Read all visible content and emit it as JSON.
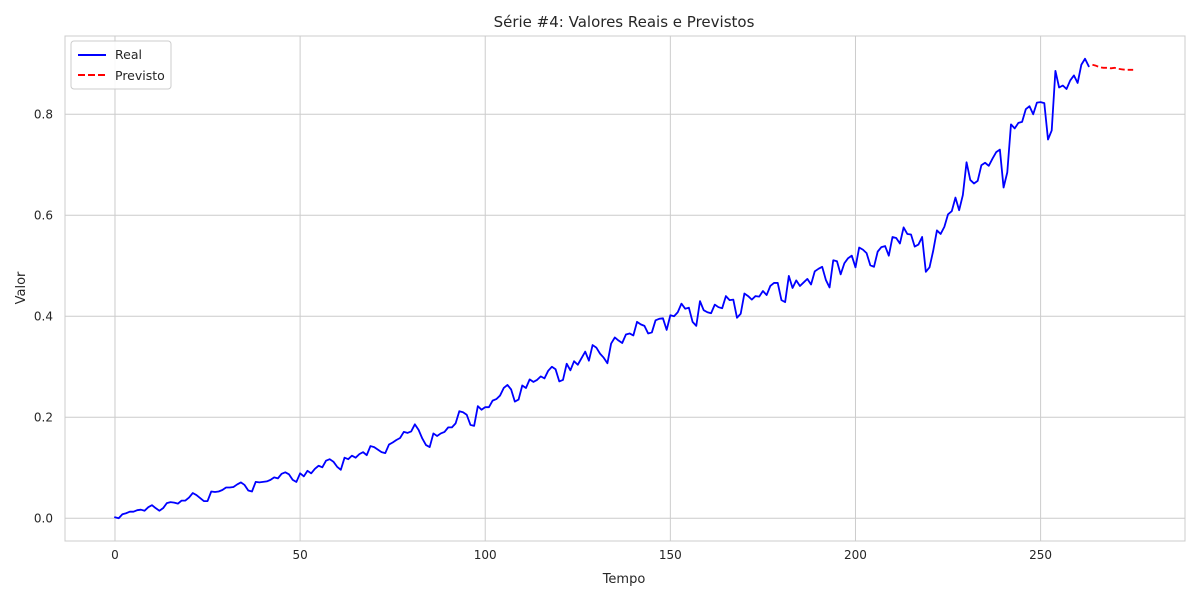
{
  "chart_data": {
    "type": "line",
    "title": "Série #4: Valores Reais e Previstos",
    "xlabel": "Tempo",
    "ylabel": "Valor",
    "xlim": [
      -13.5,
      289
    ],
    "ylim": [
      -0.045,
      0.955
    ],
    "xticks": [
      0,
      50,
      100,
      150,
      200,
      250
    ],
    "yticks": [
      0.0,
      0.2,
      0.4,
      0.6,
      0.8
    ],
    "ytick_labels": [
      "0.0",
      "0.2",
      "0.4",
      "0.6",
      "0.8"
    ],
    "grid": true,
    "legend_position": "top-left",
    "series": [
      {
        "name": "Real",
        "color": "#0000ff",
        "dash": "solid",
        "points": [
          [
            0,
            0.002
          ],
          [
            1,
            0.0
          ],
          [
            2,
            0.008
          ],
          [
            3,
            0.01
          ],
          [
            4,
            0.013
          ],
          [
            5,
            0.013
          ],
          [
            6,
            0.016
          ],
          [
            7,
            0.017
          ],
          [
            8,
            0.015
          ],
          [
            9,
            0.022
          ],
          [
            10,
            0.026
          ],
          [
            11,
            0.02
          ],
          [
            12,
            0.015
          ],
          [
            13,
            0.02
          ],
          [
            14,
            0.03
          ],
          [
            15,
            0.032
          ],
          [
            16,
            0.031
          ],
          [
            17,
            0.029
          ],
          [
            18,
            0.035
          ],
          [
            19,
            0.035
          ],
          [
            20,
            0.041
          ],
          [
            21,
            0.05
          ],
          [
            22,
            0.046
          ],
          [
            23,
            0.04
          ],
          [
            24,
            0.034
          ],
          [
            25,
            0.034
          ],
          [
            26,
            0.053
          ],
          [
            27,
            0.052
          ],
          [
            28,
            0.053
          ],
          [
            29,
            0.056
          ],
          [
            30,
            0.061
          ],
          [
            31,
            0.061
          ],
          [
            32,
            0.062
          ],
          [
            33,
            0.067
          ],
          [
            34,
            0.071
          ],
          [
            35,
            0.066
          ],
          [
            36,
            0.055
          ],
          [
            37,
            0.053
          ],
          [
            38,
            0.072
          ],
          [
            39,
            0.071
          ],
          [
            40,
            0.072
          ],
          [
            41,
            0.073
          ],
          [
            42,
            0.076
          ],
          [
            43,
            0.081
          ],
          [
            44,
            0.079
          ],
          [
            45,
            0.088
          ],
          [
            46,
            0.091
          ],
          [
            47,
            0.087
          ],
          [
            48,
            0.076
          ],
          [
            49,
            0.072
          ],
          [
            50,
            0.089
          ],
          [
            51,
            0.083
          ],
          [
            52,
            0.094
          ],
          [
            53,
            0.089
          ],
          [
            54,
            0.098
          ],
          [
            55,
            0.104
          ],
          [
            56,
            0.101
          ],
          [
            57,
            0.114
          ],
          [
            58,
            0.117
          ],
          [
            59,
            0.112
          ],
          [
            60,
            0.102
          ],
          [
            61,
            0.096
          ],
          [
            62,
            0.12
          ],
          [
            63,
            0.117
          ],
          [
            64,
            0.124
          ],
          [
            65,
            0.12
          ],
          [
            66,
            0.127
          ],
          [
            67,
            0.131
          ],
          [
            68,
            0.125
          ],
          [
            69,
            0.143
          ],
          [
            70,
            0.141
          ],
          [
            71,
            0.136
          ],
          [
            72,
            0.131
          ],
          [
            73,
            0.129
          ],
          [
            74,
            0.146
          ],
          [
            75,
            0.15
          ],
          [
            76,
            0.155
          ],
          [
            77,
            0.159
          ],
          [
            78,
            0.171
          ],
          [
            79,
            0.169
          ],
          [
            80,
            0.172
          ],
          [
            81,
            0.186
          ],
          [
            82,
            0.175
          ],
          [
            83,
            0.158
          ],
          [
            84,
            0.145
          ],
          [
            85,
            0.141
          ],
          [
            86,
            0.168
          ],
          [
            87,
            0.163
          ],
          [
            88,
            0.168
          ],
          [
            89,
            0.171
          ],
          [
            90,
            0.18
          ],
          [
            91,
            0.18
          ],
          [
            92,
            0.188
          ],
          [
            93,
            0.212
          ],
          [
            94,
            0.21
          ],
          [
            95,
            0.205
          ],
          [
            96,
            0.185
          ],
          [
            97,
            0.183
          ],
          [
            98,
            0.222
          ],
          [
            99,
            0.215
          ],
          [
            100,
            0.22
          ],
          [
            101,
            0.22
          ],
          [
            102,
            0.233
          ],
          [
            103,
            0.236
          ],
          [
            104,
            0.243
          ],
          [
            105,
            0.258
          ],
          [
            106,
            0.264
          ],
          [
            107,
            0.255
          ],
          [
            108,
            0.231
          ],
          [
            109,
            0.235
          ],
          [
            110,
            0.263
          ],
          [
            111,
            0.258
          ],
          [
            112,
            0.275
          ],
          [
            113,
            0.27
          ],
          [
            114,
            0.274
          ],
          [
            115,
            0.281
          ],
          [
            116,
            0.277
          ],
          [
            117,
            0.292
          ],
          [
            118,
            0.3
          ],
          [
            119,
            0.295
          ],
          [
            120,
            0.271
          ],
          [
            121,
            0.274
          ],
          [
            122,
            0.306
          ],
          [
            123,
            0.293
          ],
          [
            124,
            0.311
          ],
          [
            125,
            0.304
          ],
          [
            126,
            0.317
          ],
          [
            127,
            0.33
          ],
          [
            128,
            0.312
          ],
          [
            129,
            0.343
          ],
          [
            130,
            0.338
          ],
          [
            131,
            0.326
          ],
          [
            132,
            0.318
          ],
          [
            133,
            0.307
          ],
          [
            134,
            0.346
          ],
          [
            135,
            0.358
          ],
          [
            136,
            0.352
          ],
          [
            137,
            0.347
          ],
          [
            138,
            0.364
          ],
          [
            139,
            0.366
          ],
          [
            140,
            0.362
          ],
          [
            141,
            0.389
          ],
          [
            142,
            0.384
          ],
          [
            143,
            0.381
          ],
          [
            144,
            0.366
          ],
          [
            145,
            0.368
          ],
          [
            146,
            0.392
          ],
          [
            147,
            0.395
          ],
          [
            148,
            0.396
          ],
          [
            149,
            0.373
          ],
          [
            150,
            0.402
          ],
          [
            151,
            0.4
          ],
          [
            152,
            0.408
          ],
          [
            153,
            0.425
          ],
          [
            154,
            0.415
          ],
          [
            155,
            0.417
          ],
          [
            156,
            0.389
          ],
          [
            157,
            0.381
          ],
          [
            158,
            0.43
          ],
          [
            159,
            0.412
          ],
          [
            160,
            0.408
          ],
          [
            161,
            0.406
          ],
          [
            162,
            0.423
          ],
          [
            163,
            0.418
          ],
          [
            164,
            0.416
          ],
          [
            165,
            0.44
          ],
          [
            166,
            0.432
          ],
          [
            167,
            0.433
          ],
          [
            168,
            0.397
          ],
          [
            169,
            0.405
          ],
          [
            170,
            0.445
          ],
          [
            171,
            0.44
          ],
          [
            172,
            0.433
          ],
          [
            173,
            0.44
          ],
          [
            174,
            0.439
          ],
          [
            175,
            0.45
          ],
          [
            176,
            0.442
          ],
          [
            177,
            0.46
          ],
          [
            178,
            0.466
          ],
          [
            179,
            0.466
          ],
          [
            180,
            0.432
          ],
          [
            181,
            0.428
          ],
          [
            182,
            0.48
          ],
          [
            183,
            0.456
          ],
          [
            184,
            0.471
          ],
          [
            185,
            0.46
          ],
          [
            186,
            0.467
          ],
          [
            187,
            0.474
          ],
          [
            188,
            0.463
          ],
          [
            189,
            0.489
          ],
          [
            190,
            0.494
          ],
          [
            191,
            0.498
          ],
          [
            192,
            0.472
          ],
          [
            193,
            0.457
          ],
          [
            194,
            0.511
          ],
          [
            195,
            0.509
          ],
          [
            196,
            0.483
          ],
          [
            197,
            0.505
          ],
          [
            198,
            0.515
          ],
          [
            199,
            0.52
          ],
          [
            200,
            0.497
          ],
          [
            201,
            0.536
          ],
          [
            202,
            0.532
          ],
          [
            203,
            0.525
          ],
          [
            204,
            0.501
          ],
          [
            205,
            0.498
          ],
          [
            206,
            0.528
          ],
          [
            207,
            0.537
          ],
          [
            208,
            0.539
          ],
          [
            209,
            0.52
          ],
          [
            210,
            0.557
          ],
          [
            211,
            0.555
          ],
          [
            212,
            0.544
          ],
          [
            213,
            0.576
          ],
          [
            214,
            0.563
          ],
          [
            215,
            0.562
          ],
          [
            216,
            0.538
          ],
          [
            217,
            0.542
          ],
          [
            218,
            0.557
          ],
          [
            219,
            0.488
          ],
          [
            220,
            0.497
          ],
          [
            221,
            0.53
          ],
          [
            222,
            0.57
          ],
          [
            223,
            0.563
          ],
          [
            224,
            0.577
          ],
          [
            225,
            0.602
          ],
          [
            226,
            0.608
          ],
          [
            227,
            0.635
          ],
          [
            228,
            0.61
          ],
          [
            229,
            0.64
          ],
          [
            230,
            0.705
          ],
          [
            231,
            0.67
          ],
          [
            232,
            0.663
          ],
          [
            233,
            0.668
          ],
          [
            234,
            0.699
          ],
          [
            235,
            0.704
          ],
          [
            236,
            0.698
          ],
          [
            237,
            0.712
          ],
          [
            238,
            0.725
          ],
          [
            239,
            0.73
          ],
          [
            240,
            0.655
          ],
          [
            241,
            0.685
          ],
          [
            242,
            0.78
          ],
          [
            243,
            0.772
          ],
          [
            244,
            0.783
          ],
          [
            245,
            0.785
          ],
          [
            246,
            0.81
          ],
          [
            247,
            0.816
          ],
          [
            248,
            0.8
          ],
          [
            249,
            0.823
          ],
          [
            250,
            0.824
          ],
          [
            251,
            0.822
          ],
          [
            252,
            0.75
          ],
          [
            253,
            0.768
          ],
          [
            254,
            0.886
          ],
          [
            255,
            0.853
          ],
          [
            256,
            0.857
          ],
          [
            257,
            0.85
          ],
          [
            258,
            0.867
          ],
          [
            259,
            0.877
          ],
          [
            260,
            0.862
          ],
          [
            261,
            0.898
          ],
          [
            262,
            0.91
          ],
          [
            263,
            0.895
          ]
        ]
      },
      {
        "name": "Previsto",
        "color": "#ff0000",
        "dash": "dashed",
        "points": [
          [
            264,
            0.898
          ],
          [
            265,
            0.896
          ],
          [
            266,
            0.893
          ],
          [
            267,
            0.892
          ],
          [
            268,
            0.892
          ],
          [
            269,
            0.891
          ],
          [
            270,
            0.892
          ],
          [
            271,
            0.89
          ],
          [
            272,
            0.889
          ],
          [
            273,
            0.888
          ],
          [
            274,
            0.888
          ],
          [
            275,
            0.888
          ]
        ]
      }
    ]
  }
}
